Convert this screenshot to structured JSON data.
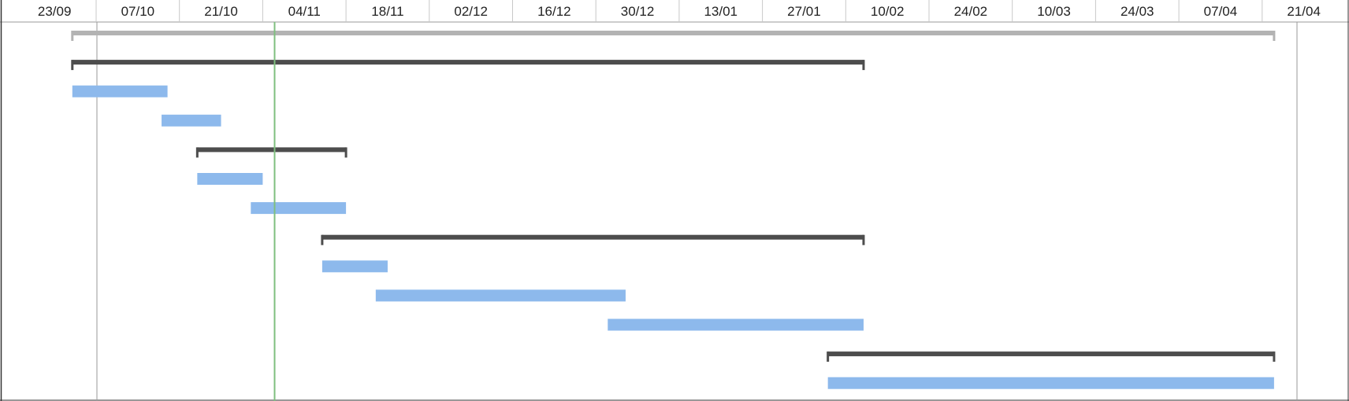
{
  "timescale": {
    "labels": [
      "23/09",
      "07/10",
      "21/10",
      "04/11",
      "18/11",
      "02/12",
      "16/12",
      "30/12",
      "13/01",
      "27/01",
      "10/02",
      "24/02",
      "10/03",
      "24/03",
      "07/04",
      "21/04"
    ]
  },
  "colors": {
    "task_bar": "#8DB9EC",
    "summary_bar": "#4D4D4D",
    "project_summary": "#B3B3B3",
    "today_line": "#7FBF7F",
    "grid": "#C8C8C8",
    "border": "#9A9A9A"
  },
  "rows": [
    {
      "type": "project-summary",
      "start": "03/10",
      "end": "23/04"
    },
    {
      "type": "summary",
      "start": "03/10",
      "end": "13/02"
    },
    {
      "type": "task",
      "start": "03/10",
      "end": "19/10"
    },
    {
      "type": "task",
      "start": "18/10",
      "end": "28/10"
    },
    {
      "type": "summary",
      "start": "24/10",
      "end": "18/11"
    },
    {
      "type": "task",
      "start": "24/10",
      "end": "04/11"
    },
    {
      "type": "task",
      "start": "02/11",
      "end": "18/11"
    },
    {
      "type": "summary",
      "start": "14/11",
      "end": "13/02"
    },
    {
      "type": "task",
      "start": "14/11",
      "end": "25/11"
    },
    {
      "type": "task",
      "start": "23/11",
      "end": "04/01"
    },
    {
      "type": "task",
      "start": "01/01",
      "end": "13/02"
    },
    {
      "type": "summary",
      "start": "07/02",
      "end": "23/04"
    },
    {
      "type": "task",
      "start": "07/02",
      "end": "23/04"
    }
  ],
  "today": "06/11"
}
